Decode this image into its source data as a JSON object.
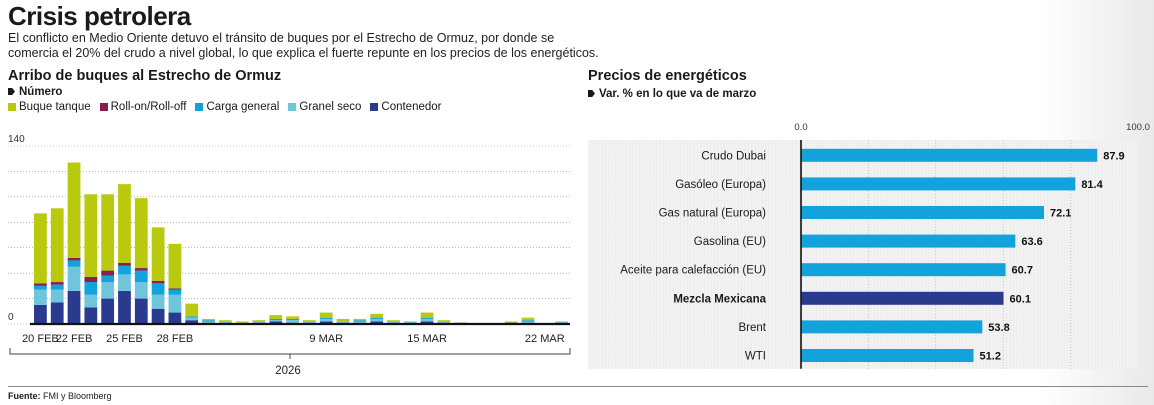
{
  "header": {
    "title": "Crisis petrolera",
    "subtitle": "El conflicto en Medio Oriente detuvo el tránsito de buques por el Estrecho de Ormuz, por donde se comercia el 20% del crudo a nivel global, lo que explica el fuerte repunte en los precios de los energéticos."
  },
  "footer": {
    "source_label": "Fuente:",
    "source_text": "FMI y Bloomberg"
  },
  "chart_data": [
    {
      "type": "bar",
      "stacked": true,
      "title": "Arribo de buques al Estrecho de Ormuz",
      "unit_label": "Número",
      "ylim": [
        0,
        140
      ],
      "y_ticks": [
        "140",
        "0"
      ],
      "grid": true,
      "year_label": "2026",
      "x_tick_labels": [
        {
          "index": 0,
          "label": "20 FEB"
        },
        {
          "index": 2,
          "label": "22 FEB"
        },
        {
          "index": 5,
          "label": "25 FEB"
        },
        {
          "index": 8,
          "label": "28 FEB"
        },
        {
          "index": 17,
          "label": "9 MAR"
        },
        {
          "index": 23,
          "label": "15 MAR"
        },
        {
          "index": 30,
          "label": "22 MAR"
        }
      ],
      "series": [
        {
          "name": "Contenedor",
          "color": "#2a3b8f"
        },
        {
          "name": "Granel seco",
          "color": "#6fc6dc"
        },
        {
          "name": "Carga general",
          "color": "#12a3dd"
        },
        {
          "name": "Roll-on/Roll-off",
          "color": "#8a1f4f"
        },
        {
          "name": "Buque tanque",
          "color": "#b9c90e"
        }
      ],
      "legend_order": [
        "Buque tanque",
        "Roll-on/Roll-off",
        "Carga general",
        "Granel seco",
        "Contenedor"
      ],
      "categories": [
        "20 FEB",
        "21 FEB",
        "22 FEB",
        "23 FEB",
        "24 FEB",
        "25 FEB",
        "26 FEB",
        "27 FEB",
        "28 FEB",
        "1 MAR",
        "2 MAR",
        "3 MAR",
        "4 MAR",
        "5 MAR",
        "6 MAR",
        "7 MAR",
        "8 MAR",
        "9 MAR",
        "10 MAR",
        "11 MAR",
        "12 MAR",
        "13 MAR",
        "14 MAR",
        "15 MAR",
        "16 MAR",
        "17 MAR",
        "18 MAR",
        "19 MAR",
        "20 MAR",
        "21 MAR",
        "22 MAR",
        "23 MAR"
      ],
      "values": [
        [
          15,
          12,
          3,
          2,
          55
        ],
        [
          17,
          10,
          4,
          2,
          58
        ],
        [
          26,
          19,
          5,
          2,
          75
        ],
        [
          13,
          10,
          10,
          4,
          65
        ],
        [
          20,
          13,
          5,
          4,
          60
        ],
        [
          26,
          13,
          7,
          2,
          62
        ],
        [
          20,
          13,
          9,
          2,
          55
        ],
        [
          12,
          11,
          9,
          2,
          42
        ],
        [
          9,
          14,
          4,
          1,
          35
        ],
        [
          3,
          2,
          1,
          0,
          10
        ],
        [
          1,
          1,
          1,
          0,
          1
        ],
        [
          1,
          1,
          0,
          0,
          1
        ],
        [
          0,
          1,
          0,
          0,
          1
        ],
        [
          1,
          1,
          0,
          0,
          1
        ],
        [
          2,
          1,
          1,
          0,
          3
        ],
        [
          1,
          2,
          1,
          0,
          2
        ],
        [
          1,
          1,
          0,
          0,
          1
        ],
        [
          2,
          2,
          1,
          0,
          4
        ],
        [
          1,
          1,
          0,
          0,
          2
        ],
        [
          1,
          1,
          1,
          0,
          1
        ],
        [
          2,
          2,
          1,
          0,
          3
        ],
        [
          1,
          1,
          0,
          0,
          1
        ],
        [
          1,
          1,
          0,
          0,
          0
        ],
        [
          2,
          2,
          1,
          0,
          4
        ],
        [
          1,
          1,
          0,
          0,
          1
        ],
        [
          1,
          0,
          0,
          0,
          0
        ],
        [
          0,
          0,
          0,
          0,
          0
        ],
        [
          0,
          0,
          0,
          0,
          0
        ],
        [
          1,
          0,
          0,
          0,
          1
        ],
        [
          1,
          1,
          1,
          0,
          2
        ],
        [
          0,
          0,
          0,
          0,
          0
        ],
        [
          1,
          1,
          0,
          0,
          0
        ]
      ]
    },
    {
      "type": "bar",
      "orientation": "horizontal",
      "title": "Precios de energéticos",
      "unit_label": "Var. % en lo que va de marzo",
      "xlim": [
        0,
        100
      ],
      "x_ticks": [
        "0.0",
        "100.0"
      ],
      "bar_color": "#12a3dd",
      "highlight_color": "#2a3b8f",
      "categories": [
        "Crudo Dubai",
        "Gasóleo (Europa)",
        "Gas natural (Europa)",
        "Gasolina (EU)",
        "Aceite para calefacción (EU)",
        "Mezcla Mexicana",
        "Brent",
        "WTI"
      ],
      "values": [
        87.9,
        81.4,
        72.1,
        63.6,
        60.7,
        60.1,
        53.8,
        51.2
      ],
      "value_labels": [
        "87.9",
        "81.4",
        "72.1",
        "63.6",
        "60.7",
        "60.1",
        "53.8",
        "51.2"
      ],
      "highlight": "Mezcla Mexicana"
    }
  ]
}
